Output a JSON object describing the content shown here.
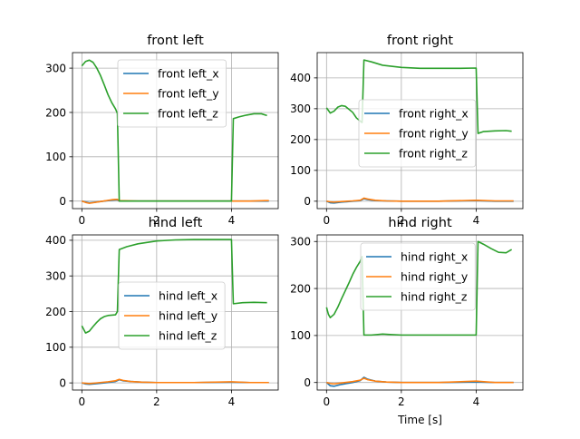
{
  "chart_data": [
    {
      "type": "line",
      "title": "front left",
      "xlabel": "",
      "ylabel": "",
      "xlim": [
        -0.25,
        5.25
      ],
      "ylim": [
        -17,
        335
      ],
      "xticks": [
        0,
        2,
        4
      ],
      "yticks": [
        0,
        100,
        200,
        300
      ],
      "grid": true,
      "legend_position": "top-center",
      "series": [
        {
          "name": "front left_x",
          "color": "#1f77b4",
          "x": [
            0,
            0.1,
            0.2,
            0.5,
            0.8,
            0.95,
            1.0,
            1.5,
            2,
            3,
            4,
            4.5,
            4.9,
            5.0
          ],
          "y": [
            0,
            -2,
            -4,
            -1,
            2,
            3,
            0,
            0,
            0,
            0,
            0,
            0,
            0,
            0
          ]
        },
        {
          "name": "front left_y",
          "color": "#ff7f0e",
          "x": [
            0,
            0.1,
            0.2,
            0.5,
            0.8,
            0.95,
            1.0,
            1.5,
            2,
            3,
            4,
            4.5,
            4.9,
            5.0
          ],
          "y": [
            0,
            -3,
            -5,
            -1,
            3,
            4,
            1,
            0,
            0,
            0,
            0,
            0,
            1,
            1
          ]
        },
        {
          "name": "front left_z",
          "color": "#2ca02c",
          "x": [
            0,
            0.1,
            0.2,
            0.3,
            0.4,
            0.5,
            0.6,
            0.7,
            0.8,
            0.9,
            0.95,
            1.0,
            1.5,
            2,
            2.5,
            3,
            3.5,
            4.0,
            4.05,
            4.2,
            4.4,
            4.6,
            4.8,
            4.95
          ],
          "y": [
            305,
            315,
            318,
            313,
            300,
            283,
            262,
            240,
            222,
            208,
            198,
            0,
            0,
            0,
            0,
            0,
            0,
            0,
            186,
            190,
            194,
            197,
            197,
            193
          ]
        }
      ]
    },
    {
      "type": "line",
      "title": "front right",
      "xlabel": "",
      "ylabel": "",
      "xlim": [
        -0.25,
        5.25
      ],
      "ylim": [
        -24,
        482
      ],
      "xticks": [
        0,
        2,
        4
      ],
      "yticks": [
        0,
        100,
        200,
        300,
        400
      ],
      "grid": true,
      "legend_position": "center",
      "series": [
        {
          "name": "front right_x",
          "color": "#1f77b4",
          "x": [
            0,
            0.1,
            0.2,
            0.4,
            0.7,
            0.9,
            1.0,
            1.1,
            1.3,
            1.6,
            2,
            3,
            4,
            4.5,
            5.0
          ],
          "y": [
            0,
            -5,
            -6,
            -3,
            0,
            2,
            8,
            5,
            2,
            1,
            0,
            0,
            2,
            0,
            0
          ]
        },
        {
          "name": "front right_y",
          "color": "#ff7f0e",
          "x": [
            0,
            0.1,
            0.2,
            0.4,
            0.7,
            0.9,
            1.0,
            1.1,
            1.3,
            1.6,
            2,
            3,
            4,
            4.5,
            5.0
          ],
          "y": [
            0,
            -2,
            -3,
            -1,
            1,
            3,
            10,
            7,
            3,
            1,
            0,
            0,
            3,
            1,
            1
          ]
        },
        {
          "name": "front right_z",
          "color": "#2ca02c",
          "x": [
            0,
            0.1,
            0.2,
            0.3,
            0.4,
            0.5,
            0.6,
            0.7,
            0.8,
            0.9,
            0.95,
            1.0,
            1.2,
            1.5,
            2,
            2.5,
            3,
            3.5,
            4.0,
            4.05,
            4.2,
            4.5,
            4.8,
            4.95
          ],
          "y": [
            303,
            286,
            292,
            305,
            310,
            308,
            298,
            288,
            270,
            260,
            255,
            458,
            452,
            441,
            434,
            431,
            431,
            431,
            432,
            220,
            226,
            228,
            229,
            227
          ]
        }
      ]
    },
    {
      "type": "line",
      "title": "hind left",
      "xlabel": "",
      "ylabel": "",
      "xlim": [
        -0.25,
        5.25
      ],
      "ylim": [
        -20,
        415
      ],
      "xticks": [
        0,
        2,
        4
      ],
      "yticks": [
        0,
        100,
        200,
        300,
        400
      ],
      "grid": true,
      "legend_position": "center",
      "series": [
        {
          "name": "hind left_x",
          "color": "#1f77b4",
          "x": [
            0,
            0.1,
            0.2,
            0.4,
            0.7,
            0.9,
            1.0,
            1.1,
            1.3,
            1.6,
            2,
            3,
            4,
            4.5,
            5.0
          ],
          "y": [
            0,
            -3,
            -4,
            -2,
            1,
            4,
            9,
            6,
            4,
            2,
            1,
            1,
            2,
            1,
            1
          ]
        },
        {
          "name": "hind left_y",
          "color": "#ff7f0e",
          "x": [
            0,
            0.1,
            0.2,
            0.4,
            0.7,
            0.9,
            1.0,
            1.1,
            1.3,
            1.6,
            2,
            3,
            4,
            4.5,
            5.0
          ],
          "y": [
            0,
            -1,
            -2,
            0,
            3,
            6,
            10,
            7,
            4,
            2,
            1,
            1,
            3,
            1,
            1
          ]
        },
        {
          "name": "hind left_z",
          "color": "#2ca02c",
          "x": [
            0,
            0.1,
            0.2,
            0.3,
            0.4,
            0.5,
            0.6,
            0.7,
            0.8,
            0.9,
            0.95,
            1.0,
            1.2,
            1.5,
            2,
            2.5,
            3,
            3.5,
            4.0,
            4.05,
            4.3,
            4.6,
            4.95
          ],
          "y": [
            160,
            140,
            145,
            158,
            170,
            180,
            186,
            189,
            190,
            191,
            200,
            374,
            382,
            390,
            398,
            401,
            402,
            402,
            402,
            222,
            225,
            226,
            225
          ]
        }
      ]
    },
    {
      "type": "line",
      "title": "hind right",
      "xlabel": "Time [s]",
      "ylabel": "",
      "xlim": [
        -0.25,
        5.25
      ],
      "ylim": [
        -16,
        314
      ],
      "xticks": [
        0,
        2,
        4
      ],
      "yticks": [
        0,
        100,
        200,
        300
      ],
      "grid": true,
      "legend_position": "top-center",
      "series": [
        {
          "name": "hind right_x",
          "color": "#1f77b4",
          "x": [
            0,
            0.1,
            0.2,
            0.4,
            0.7,
            0.9,
            1.0,
            1.1,
            1.3,
            1.6,
            2,
            3,
            4,
            4.5,
            5.0
          ],
          "y": [
            0,
            -7,
            -8,
            -4,
            0,
            4,
            11,
            7,
            3,
            1,
            0,
            0,
            1,
            0,
            0
          ]
        },
        {
          "name": "hind right_y",
          "color": "#ff7f0e",
          "x": [
            0,
            0.1,
            0.2,
            0.4,
            0.7,
            0.9,
            1.0,
            1.1,
            1.3,
            1.6,
            2,
            3,
            4,
            4.5,
            5.0
          ],
          "y": [
            0,
            -2,
            -3,
            -1,
            2,
            5,
            9,
            6,
            3,
            1,
            0,
            0,
            3,
            0,
            0
          ]
        },
        {
          "name": "hind right_z",
          "color": "#2ca02c",
          "x": [
            0,
            0.05,
            0.1,
            0.2,
            0.3,
            0.4,
            0.5,
            0.6,
            0.7,
            0.8,
            0.9,
            0.95,
            1.0,
            1.2,
            1.5,
            1.7,
            2,
            2.5,
            3,
            3.5,
            4.0,
            4.05,
            4.2,
            4.4,
            4.6,
            4.8,
            4.95
          ],
          "y": [
            160,
            145,
            138,
            145,
            160,
            178,
            195,
            212,
            230,
            245,
            258,
            268,
            101,
            101,
            103,
            102,
            101,
            101,
            101,
            101,
            101,
            300,
            294,
            285,
            277,
            276,
            283
          ]
        }
      ]
    }
  ]
}
